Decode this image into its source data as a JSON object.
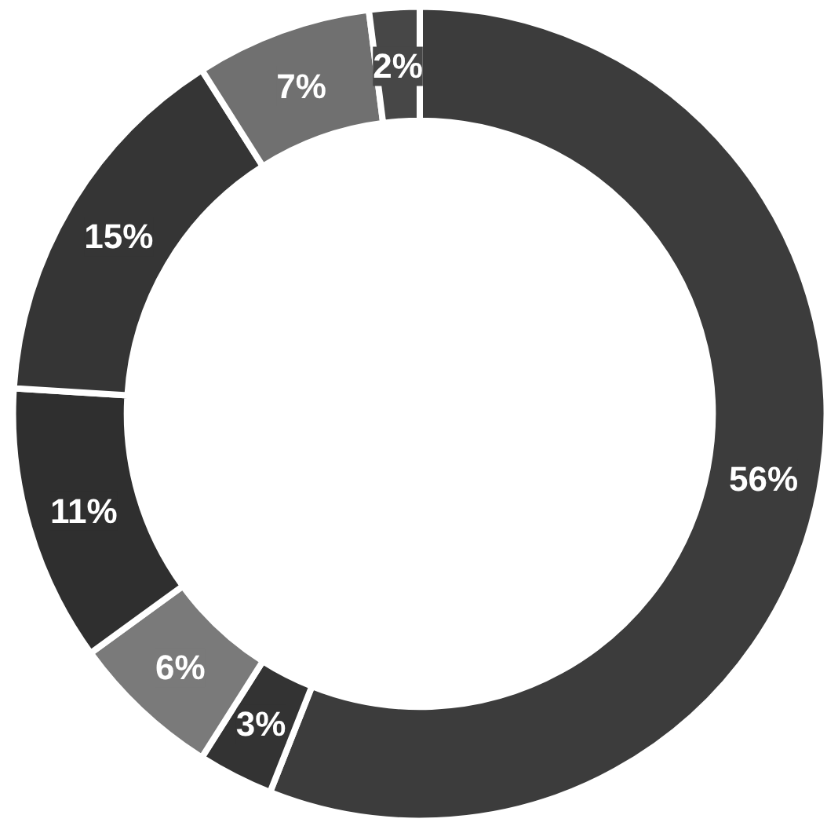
{
  "chart_data": {
    "type": "donut",
    "categories": [
      null,
      null,
      null,
      null,
      null,
      null,
      null
    ],
    "values": [
      56,
      3,
      6,
      11,
      15,
      7,
      2
    ],
    "value_labels": [
      "56%",
      "3%",
      "6%",
      "11%",
      "15%",
      "7%",
      "2%"
    ],
    "colors": [
      "#3c3c3c",
      "#333333",
      "#7a7a7a",
      "#2f2f2f",
      "#353535",
      "#707070",
      "#474747"
    ]
  }
}
